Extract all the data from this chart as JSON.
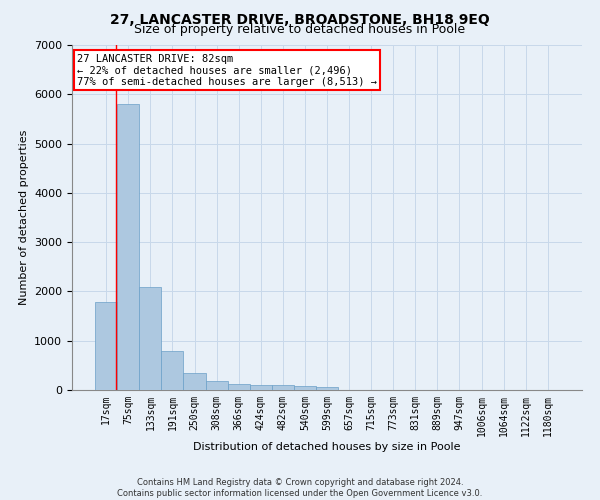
{
  "title": "27, LANCASTER DRIVE, BROADSTONE, BH18 9EQ",
  "subtitle": "Size of property relative to detached houses in Poole",
  "xlabel": "Distribution of detached houses by size in Poole",
  "ylabel": "Number of detached properties",
  "bin_labels": [
    "17sqm",
    "75sqm",
    "133sqm",
    "191sqm",
    "250sqm",
    "308sqm",
    "366sqm",
    "424sqm",
    "482sqm",
    "540sqm",
    "599sqm",
    "657sqm",
    "715sqm",
    "773sqm",
    "831sqm",
    "889sqm",
    "947sqm",
    "1006sqm",
    "1064sqm",
    "1122sqm",
    "1180sqm"
  ],
  "bar_heights": [
    1780,
    5800,
    2080,
    800,
    340,
    190,
    115,
    105,
    95,
    80,
    70,
    0,
    0,
    0,
    0,
    0,
    0,
    0,
    0,
    0,
    0
  ],
  "bar_color": "#adc8e0",
  "bar_edge_color": "#6aa0c8",
  "annotation_text_line1": "27 LANCASTER DRIVE: 82sqm",
  "annotation_text_line2": "← 22% of detached houses are smaller (2,496)",
  "annotation_text_line3": "77% of semi-detached houses are larger (8,513) →",
  "annotation_box_color": "white",
  "annotation_box_edge_color": "red",
  "vline_color": "red",
  "ylim": [
    0,
    7000
  ],
  "yticks": [
    0,
    1000,
    2000,
    3000,
    4000,
    5000,
    6000,
    7000
  ],
  "grid_color": "#c8d8ea",
  "background_color": "#e8f0f8",
  "footer_line1": "Contains HM Land Registry data © Crown copyright and database right 2024.",
  "footer_line2": "Contains public sector information licensed under the Open Government Licence v3.0.",
  "title_fontsize": 10,
  "subtitle_fontsize": 9,
  "axis_label_fontsize": 8,
  "tick_fontsize": 7,
  "annotation_fontsize": 7.5,
  "footer_fontsize": 6
}
